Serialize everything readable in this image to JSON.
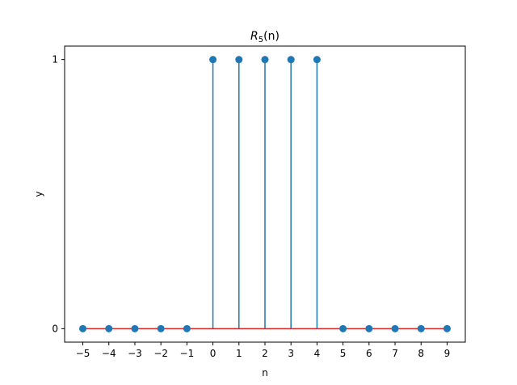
{
  "chart_data": {
    "type": "stem",
    "title": "R_5(n)",
    "title_main": "R",
    "title_sub": "5",
    "title_arg": "(n)",
    "xlabel": "n",
    "ylabel": "y",
    "x": [
      -5,
      -4,
      -3,
      -2,
      -1,
      0,
      1,
      2,
      3,
      4,
      5,
      6,
      7,
      8,
      9
    ],
    "y": [
      0,
      0,
      0,
      0,
      0,
      1,
      1,
      1,
      1,
      1,
      0,
      0,
      0,
      0,
      0
    ],
    "xlim": [
      -5.7,
      9.7
    ],
    "ylim": [
      -0.05,
      1.05
    ],
    "x_ticks": [
      -5,
      -4,
      -3,
      -2,
      -1,
      0,
      1,
      2,
      3,
      4,
      5,
      6,
      7,
      8,
      9
    ],
    "x_tick_labels": [
      "−5",
      "−4",
      "−3",
      "−2",
      "−1",
      "0",
      "1",
      "2",
      "3",
      "4",
      "5",
      "6",
      "7",
      "8",
      "9"
    ],
    "y_ticks": [
      0,
      1
    ],
    "y_tick_labels": [
      "0",
      "1"
    ],
    "grid": false,
    "colors": {
      "stem": "#1f77b4",
      "marker": "#1f77b4",
      "baseline": "#d62728",
      "axes": "#000000"
    }
  }
}
